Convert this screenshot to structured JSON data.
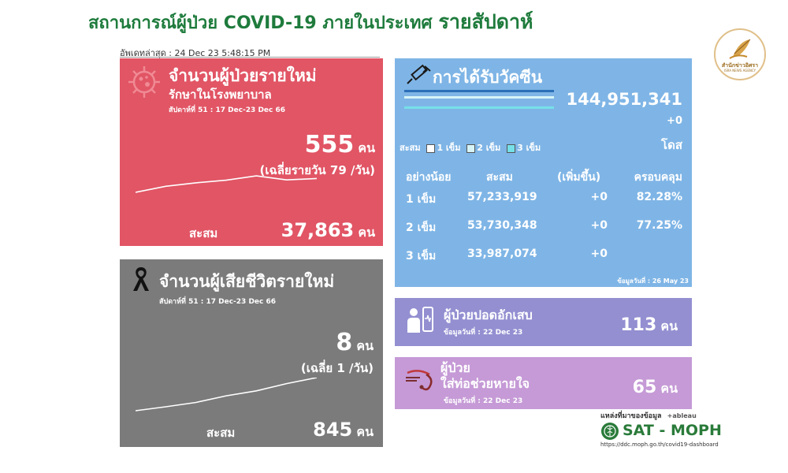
{
  "header": {
    "title_main": "สถานการณ์ผู้ป่วย COVID-19 ภายในประเทศ",
    "title_sub": "รายสัปดาห์",
    "updated": "อัพเดทล่าสุด : 24 Dec 23 5:48:15 PM",
    "logo_text": "สำนักข่าวอิศรา",
    "logo_sub": "ISRA NEWS AGENCY"
  },
  "cases": {
    "title": "จำนวนผู้ป่วยรายใหม่",
    "subtitle": "รักษาในโรงพยาบาล",
    "week": "สัปดาห์ที่ 51 : 17 Dec-23 Dec 66",
    "count": "555",
    "unit": "คน",
    "avg": "(เฉลี่ยรายวัน 79 /วัน)",
    "cum_label": "สะสม",
    "cum_value": "37,863",
    "cum_unit": "คน",
    "trend": [
      0.0,
      0.35,
      0.55,
      0.7,
      0.95,
      0.72,
      0.8
    ]
  },
  "deaths": {
    "title": "จำนวนผู้เสียชีวิตรายใหม่",
    "week": "สัปดาห์ที่ 51 : 17 Dec-23 Dec 66",
    "count": "8",
    "unit": "คน",
    "avg": "(เฉลี่ย 1 /วัน)",
    "cum_label": "สะสม",
    "cum_value": "845",
    "cum_unit": "คน",
    "trend": [
      0.0,
      0.12,
      0.25,
      0.45,
      0.6,
      0.82,
      1.0
    ]
  },
  "vaccine": {
    "title": "การได้รับวัคซีน",
    "total": "144,951,341",
    "delta": "+0",
    "unit": "โดส",
    "legend_prefix": "สะสม",
    "legend": [
      "1 เข็ม",
      "2 เข็ม",
      "3 เข็ม"
    ],
    "columns": [
      "อย่างน้อย",
      "สะสม",
      "(เพิ่มขึ้น)",
      "ครอบคลุม"
    ],
    "rows": [
      {
        "dose": "1 เข็ม",
        "cum": "57,233,919",
        "inc": "+0",
        "cov": "82.28%"
      },
      {
        "dose": "2 เข็ม",
        "cum": "53,730,348",
        "inc": "+0",
        "cov": "77.25%"
      },
      {
        "dose": "3 เข็ม",
        "cum": "33,987,074",
        "inc": "+0",
        "cov": ""
      }
    ],
    "data_date": "ข้อมูลวันที่ : 26 May 23"
  },
  "pneumonia": {
    "title": "ผู้ป่วยปอดอักเสบ",
    "date": "ข้อมูลวันที่ : 22 Dec 23",
    "value": "113",
    "unit": "คน"
  },
  "ventilator": {
    "title_line1": "ผู้ป่วย",
    "title_line2": "ใส่ท่อช่วยหายใจ",
    "date": "ข้อมูลวันที่ : 22 Dec 23",
    "value": "65",
    "unit": "คน"
  },
  "source": {
    "label": "แหล่งที่มาของข้อมูล",
    "tableau": "+ableau",
    "name": "SAT - MOPH",
    "url": "https://ddc.moph.go.th/covid19-dashboard"
  },
  "colors": {
    "title_green": "#1e7b3c",
    "cases_bg": "#e15565",
    "deaths_bg": "#7b7b7b",
    "vaccine_bg": "#7fb5e6",
    "pneumonia_bg": "#938fd1",
    "ventilator_bg": "#c59ad6"
  }
}
